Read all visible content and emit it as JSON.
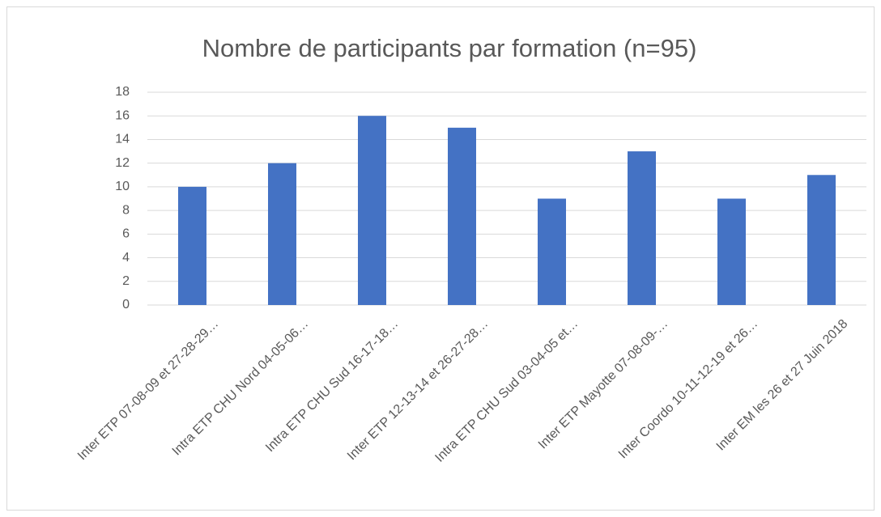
{
  "chart_data": {
    "type": "bar",
    "title": "Nombre de participants par formation (n=95)",
    "categories": [
      "Inter ETP 07-08-09 et 27-28-29…",
      "Intra ETP CHU Nord 04-05-06…",
      "Intra ETP CHU Sud 16-17-18…",
      "Inter ETP 12-13-14 et 26-27-28…",
      "Intra ETP CHU Sud 03-04-05 et…",
      "Inter ETP Mayotte  07-08-09-…",
      "Inter Coordo 10-11-12-19 et 26…",
      "Inter EM les 26 et 27 Juin 2018"
    ],
    "values": [
      10,
      12,
      16,
      15,
      9,
      13,
      9,
      11
    ],
    "color": "#4472c4",
    "ylim": [
      0,
      18
    ],
    "yticks": [
      0,
      2,
      4,
      6,
      8,
      10,
      12,
      14,
      16,
      18
    ],
    "grid": true
  }
}
